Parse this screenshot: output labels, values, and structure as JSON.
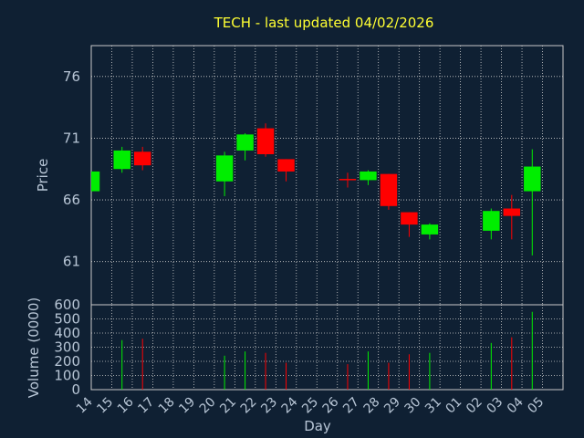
{
  "chart_data": {
    "type": "candlestick",
    "title": "TECH - last updated 04/02/2026",
    "xlabel": "Day",
    "ylabel_price": "Price",
    "ylabel_volume": "Volume (0000)",
    "x_tick_labels": [
      "14",
      "15",
      "16",
      "17",
      "18",
      "19",
      "20",
      "21",
      "22",
      "23",
      "24",
      "25",
      "26",
      "27",
      "28",
      "29",
      "30",
      "31",
      "01",
      "02",
      "03",
      "04",
      "05"
    ],
    "price_ylim": [
      57.5,
      78.5
    ],
    "price_ticks": [
      61,
      66,
      71,
      76
    ],
    "volume_ylim": [
      0,
      600
    ],
    "volume_ticks": [
      0,
      100,
      200,
      300,
      400,
      500,
      600
    ],
    "grid": true,
    "up_color": "#00ee00",
    "down_color": "#ff0000",
    "candles": [
      {
        "day": "14",
        "open": 66.7,
        "high": 68.3,
        "low": 66.7,
        "close": 68.3,
        "volume": 0
      },
      {
        "day": "15",
        "open": 68.5,
        "high": 70.3,
        "low": 68.2,
        "close": 70.0,
        "volume": 350
      },
      {
        "day": "16",
        "open": 69.9,
        "high": 70.3,
        "low": 68.4,
        "close": 68.8,
        "volume": 360
      },
      {
        "day": "20",
        "open": 67.5,
        "high": 69.9,
        "low": 66.3,
        "close": 69.6,
        "volume": 240
      },
      {
        "day": "21",
        "open": 70.0,
        "high": 71.4,
        "low": 69.2,
        "close": 71.3,
        "volume": 270
      },
      {
        "day": "22",
        "open": 71.8,
        "high": 72.2,
        "low": 69.5,
        "close": 69.7,
        "volume": 260
      },
      {
        "day": "23",
        "open": 69.3,
        "high": 69.3,
        "low": 67.5,
        "close": 68.3,
        "volume": 190
      },
      {
        "day": "26",
        "open": 67.7,
        "high": 68.2,
        "low": 67.0,
        "close": 67.6,
        "volume": 180
      },
      {
        "day": "27",
        "open": 67.6,
        "high": 68.4,
        "low": 67.2,
        "close": 68.3,
        "volume": 270
      },
      {
        "day": "28",
        "open": 68.1,
        "high": 68.1,
        "low": 65.2,
        "close": 65.5,
        "volume": 190
      },
      {
        "day": "29",
        "open": 65.0,
        "high": 65.0,
        "low": 63.0,
        "close": 64.0,
        "volume": 250
      },
      {
        "day": "30",
        "open": 63.2,
        "high": 64.1,
        "low": 62.8,
        "close": 64.0,
        "volume": 260
      },
      {
        "day": "02",
        "open": 63.5,
        "high": 65.3,
        "low": 62.8,
        "close": 65.1,
        "volume": 330
      },
      {
        "day": "03",
        "open": 65.3,
        "high": 66.4,
        "low": 62.8,
        "close": 64.7,
        "volume": 370
      },
      {
        "day": "04",
        "open": 66.7,
        "high": 70.1,
        "low": 61.5,
        "close": 68.7,
        "volume": 550
      }
    ]
  }
}
